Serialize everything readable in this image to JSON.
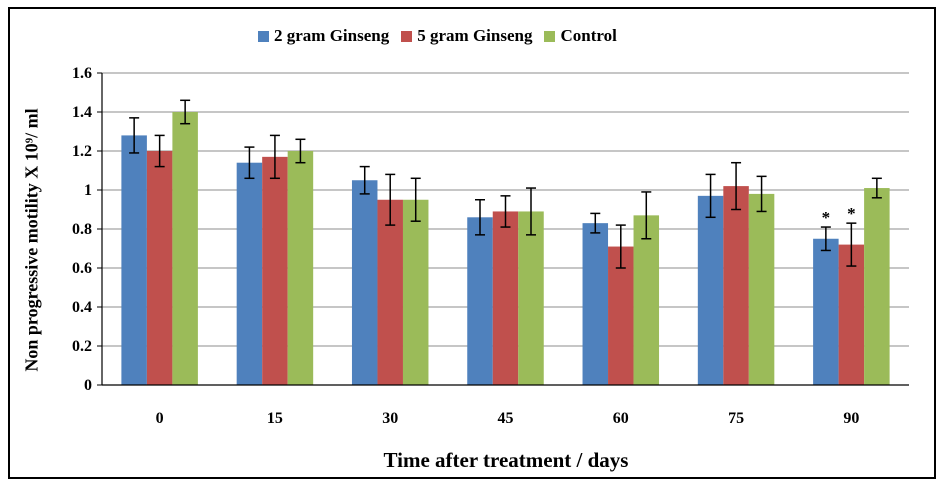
{
  "chart_data": {
    "type": "bar",
    "title": "",
    "xlabel": "Time after treatment / days",
    "ylabel": "Non progressive motility X 10⁹/ ml",
    "ylim": [
      0,
      1.6
    ],
    "yticks": [
      "0",
      "0.2",
      "0.4",
      "0.6",
      "0.8",
      "1",
      "1.2",
      "1.4",
      "1.6"
    ],
    "categories": [
      "0",
      "15",
      "30",
      "45",
      "60",
      "75",
      "90"
    ],
    "grid": true,
    "legend_position": "top",
    "series": [
      {
        "name": "2 gram Ginseng",
        "color": "#4F81BD",
        "values": [
          1.28,
          1.14,
          1.05,
          0.86,
          0.83,
          0.97,
          0.75
        ],
        "errors": [
          0.09,
          0.08,
          0.07,
          0.09,
          0.05,
          0.11,
          0.06
        ],
        "annotations": [
          "",
          "",
          "",
          "",
          "",
          "",
          "*"
        ]
      },
      {
        "name": "5 gram Ginseng",
        "color": "#C0504D",
        "values": [
          1.2,
          1.17,
          0.95,
          0.89,
          0.71,
          1.02,
          0.72
        ],
        "errors": [
          0.08,
          0.11,
          0.13,
          0.08,
          0.11,
          0.12,
          0.11
        ],
        "annotations": [
          "",
          "",
          "",
          "",
          "",
          "",
          "*"
        ]
      },
      {
        "name": "Control",
        "color": "#9BBB59",
        "values": [
          1.4,
          1.2,
          0.95,
          0.89,
          0.87,
          0.98,
          1.01
        ],
        "errors": [
          0.06,
          0.06,
          0.11,
          0.12,
          0.12,
          0.09,
          0.05
        ],
        "annotations": [
          "",
          "",
          "",
          "",
          "",
          "",
          ""
        ]
      }
    ]
  }
}
